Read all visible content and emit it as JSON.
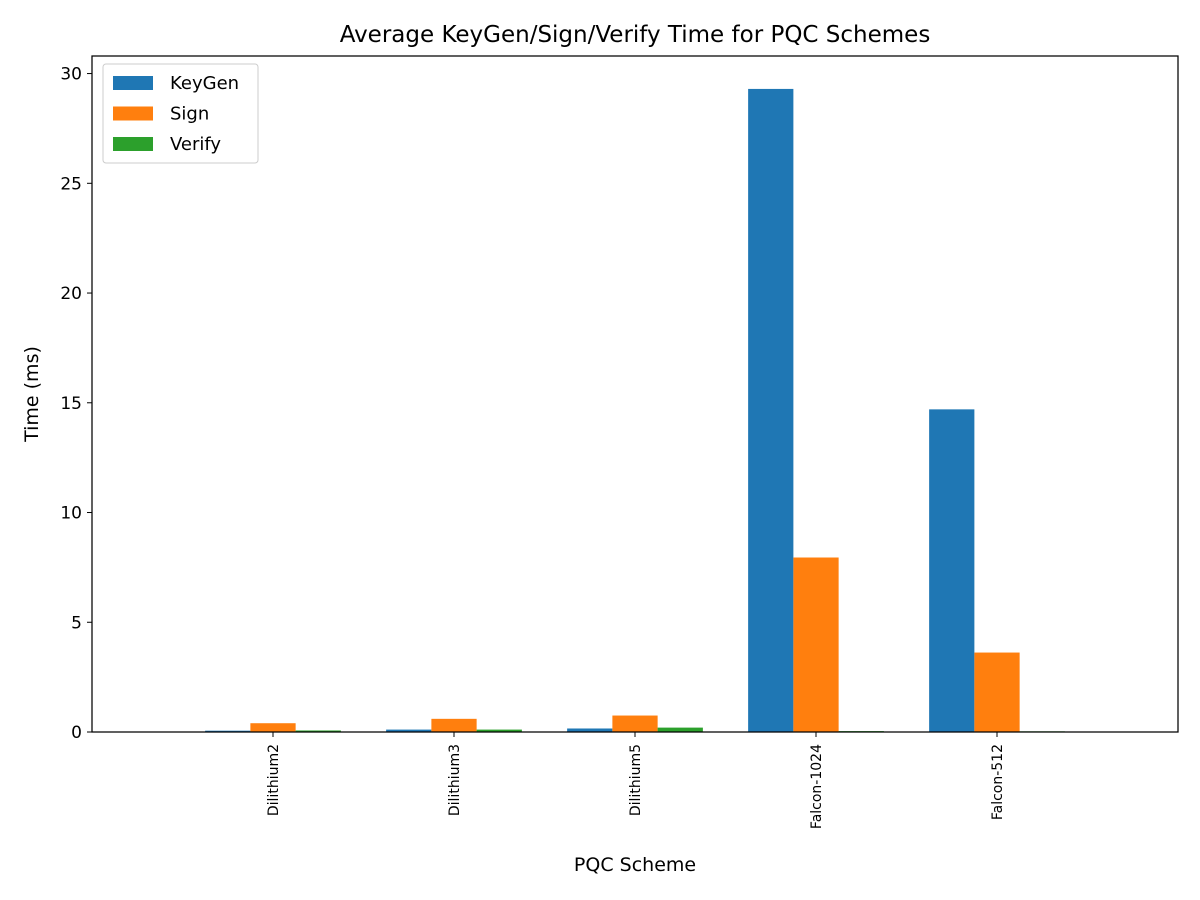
{
  "chart_data": {
    "type": "bar",
    "title": "Average KeyGen/Sign/Verify Time for PQC Schemes",
    "xlabel": "PQC Scheme",
    "ylabel": "Time (ms)",
    "categories": [
      "Dilithium2",
      "Dilithium3",
      "Dilithium5",
      "Falcon-1024",
      "Falcon-512"
    ],
    "series": [
      {
        "name": "KeyGen",
        "color": "#1f77b4",
        "values": [
          0.06,
          0.11,
          0.16,
          29.3,
          14.7
        ]
      },
      {
        "name": "Sign",
        "color": "#ff7f0e",
        "values": [
          0.4,
          0.6,
          0.75,
          7.95,
          3.62
        ]
      },
      {
        "name": "Verify",
        "color": "#2ca02c",
        "values": [
          0.07,
          0.11,
          0.2,
          0.04,
          0.03
        ]
      }
    ],
    "ylim": [
      0,
      30.8
    ],
    "yticks": [
      "0",
      "5",
      "10",
      "15",
      "20",
      "25",
      "30"
    ],
    "xlim": [
      -1,
      5
    ],
    "grid": false,
    "legend_position": "top-left",
    "xtick_rotation": "vertical"
  }
}
